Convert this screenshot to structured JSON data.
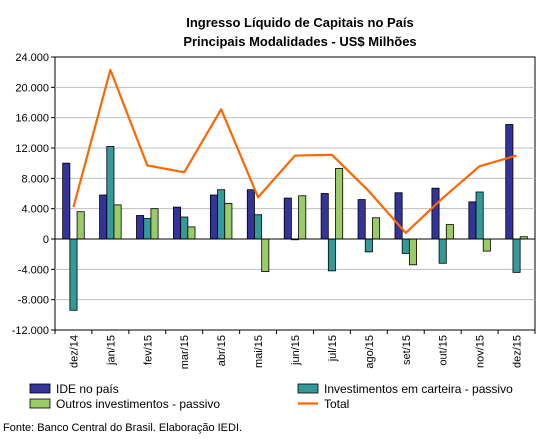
{
  "chart_data": {
    "type": "bar",
    "title": "Ingresso Líquido de Capitais no País",
    "subtitle": "Principais Modalidades  - US$ Milhões",
    "xlabel": "",
    "ylabel": "",
    "categories": [
      "dez/14",
      "jan/15",
      "fev/15",
      "mar/15",
      "abr/15",
      "mai/15",
      "jun/15",
      "jul/15",
      "ago/15",
      "set/15",
      "out/15",
      "nov/15",
      "dez/15"
    ],
    "ylim": [
      -12000,
      24000
    ],
    "yticks": [
      -12000,
      -8000,
      -4000,
      0,
      4000,
      8000,
      12000,
      16000,
      20000,
      24000
    ],
    "ytick_labels": [
      "-12.000",
      "-8.000",
      "-4.000",
      "0",
      "4.000",
      "8.000",
      "12.000",
      "16.000",
      "20.000",
      "24.000"
    ],
    "grid": "horizontal",
    "series": [
      {
        "name": "IDE no país",
        "type": "bar",
        "color": "#333399",
        "values": [
          10000,
          5800,
          3100,
          4200,
          5800,
          6500,
          5400,
          6000,
          5200,
          6100,
          6700,
          4900,
          15100
        ]
      },
      {
        "name": "Investimentos em carteira - passivo",
        "type": "bar",
        "color": "#339999",
        "values": [
          -9400,
          12200,
          2700,
          2900,
          6500,
          3200,
          -100,
          -4200,
          -1700,
          -1900,
          -3200,
          6200,
          -4400
        ]
      },
      {
        "name": "Outros investimentos - passivo",
        "type": "bar",
        "color": "#99CC66",
        "values": [
          3600,
          4500,
          4000,
          1600,
          4700,
          -4300,
          5700,
          9300,
          2800,
          -3400,
          1900,
          -1600,
          300
        ]
      },
      {
        "name": "Total",
        "type": "line",
        "color": "#FF6600",
        "values": [
          4200,
          22300,
          9700,
          8800,
          17100,
          5500,
          11000,
          11100,
          6300,
          800,
          5400,
          9600,
          11000
        ]
      }
    ],
    "legend_position": "bottom",
    "source": "Fonte: Banco Central do Brasil. Elaboração IEDI."
  }
}
